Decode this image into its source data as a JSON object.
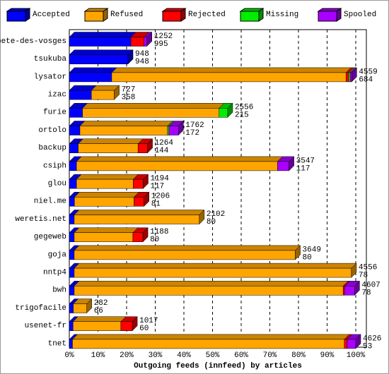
{
  "chart_data": {
    "type": "bar3d-stacked-horizontal",
    "x_label": "Outgoing feeds (innfeed) by articles",
    "categories": [
      "bete-des-vosges",
      "tsukuba",
      "lysator",
      "izac",
      "furie",
      "ortolo",
      "backup",
      "csiph",
      "glou",
      "niel.me",
      "weretis.net",
      "gegeweb",
      "goja",
      "nntp4",
      "bwh",
      "trigofacile",
      "usenet-fr",
      "tnet"
    ],
    "offered": [
      1252,
      948,
      4559,
      727,
      2556,
      1762,
      1264,
      3547,
      1194,
      1206,
      2102,
      1188,
      3649,
      4556,
      4607,
      282,
      1017,
      4626
    ],
    "accepted": [
      995,
      948,
      684,
      358,
      215,
      172,
      144,
      117,
      117,
      81,
      80,
      80,
      80,
      78,
      78,
      66,
      60,
      53
    ],
    "series": [
      {
        "name": "Accepted",
        "color": "#0000ff",
        "values": [
          21.5,
          20.5,
          14.8,
          7.7,
          4.6,
          3.7,
          3.1,
          2.5,
          2.5,
          1.8,
          1.7,
          1.7,
          1.7,
          1.7,
          1.7,
          1.4,
          1.3,
          1.1
        ]
      },
      {
        "name": "Refused",
        "color": "#ffa500",
        "values": [
          0,
          0,
          81.8,
          8.0,
          47.7,
          30.6,
          20.9,
          70.2,
          19.8,
          20.8,
          43.7,
          20.5,
          77.2,
          96.8,
          93.9,
          4.7,
          16.7,
          94.9
        ]
      },
      {
        "name": "Rejected",
        "color": "#ff0000",
        "values": [
          4.6,
          0,
          1.0,
          0,
          0,
          0,
          3.3,
          0,
          3.5,
          3.5,
          0,
          3.5,
          0,
          0,
          0.5,
          0,
          4.0,
          1.0
        ]
      },
      {
        "name": "Missing",
        "color": "#00ee00",
        "values": [
          0,
          0,
          0.5,
          0,
          3.0,
          0.5,
          0,
          0,
          0,
          0,
          0,
          0,
          0,
          0,
          0,
          0,
          0,
          0
        ]
      },
      {
        "name": "Spooled",
        "color": "#aa00ff",
        "values": [
          1.0,
          0,
          0.5,
          0,
          0,
          3.3,
          0,
          4.0,
          0,
          0,
          0,
          0,
          0,
          0,
          3.5,
          0,
          0,
          3.0
        ]
      }
    ],
    "xlim": [
      0,
      100
    ],
    "xticks": [
      {
        "value": 0,
        "label": "0%"
      },
      {
        "value": 10,
        "label": "10%"
      },
      {
        "value": 20,
        "label": "20%"
      },
      {
        "value": 30,
        "label": "30%"
      },
      {
        "value": 40,
        "label": "40%"
      },
      {
        "value": 50,
        "label": "50%"
      },
      {
        "value": 60,
        "label": "60%"
      },
      {
        "value": 70,
        "label": "70%"
      },
      {
        "value": 80,
        "label": "80%"
      },
      {
        "value": 90,
        "label": "90%"
      },
      {
        "value": 100,
        "label": "100%"
      }
    ],
    "grid": true
  }
}
